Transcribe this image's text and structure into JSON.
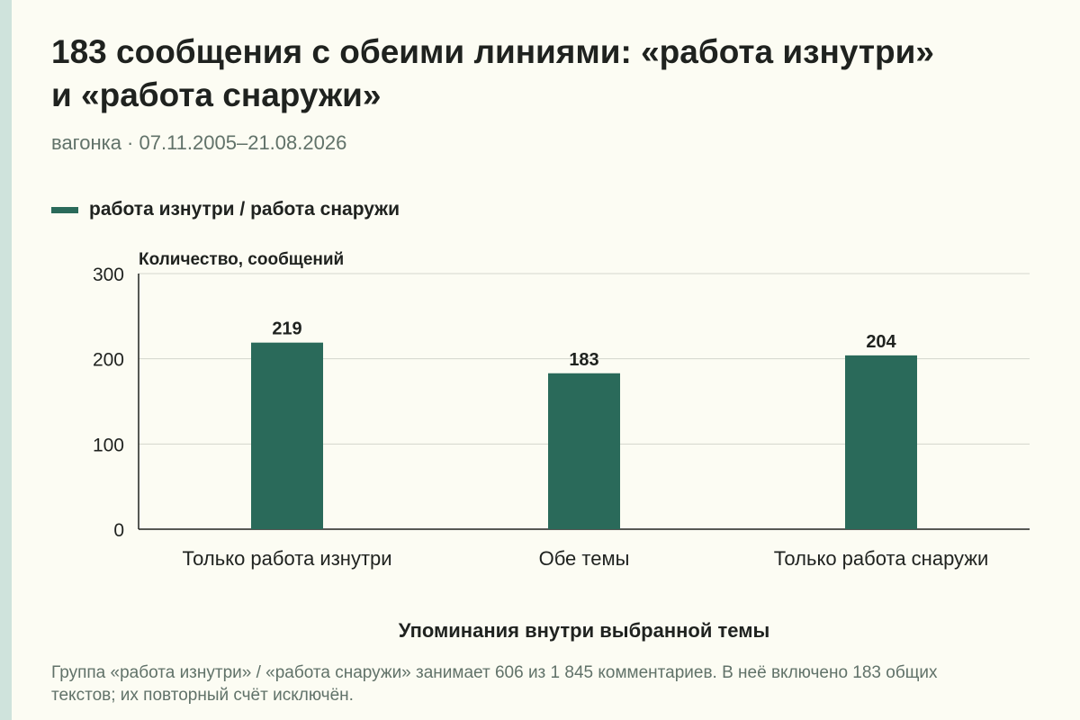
{
  "title": "183 сообщения с обеими линиями: «работа изнутри» и «работа снаружи»",
  "subtitle": "вагонка · 07.11.2005–21.08.2026",
  "legend": {
    "label": "работа изнутри / работа снаружи"
  },
  "footnote": "Группа «работа изнутри» / «работа снаружи» занимает 606 из 1 845 комментариев. В неё включено 183 общих текстов; их повторный счёт исключён.",
  "colors": {
    "bar": "#2a6a5a",
    "background": "#fcfcf3",
    "accent_strip": "#cfe3dc"
  },
  "chart_data": {
    "type": "bar",
    "categories": [
      "Только работа изнутри",
      "Обе темы",
      "Только работа снаружи"
    ],
    "series": [
      {
        "name": "работа изнутри / работа снаружи",
        "values": [
          219,
          183,
          204
        ]
      }
    ],
    "ylabel": "Количество, сообщений",
    "xlabel": "Упоминания внутри выбранной темы",
    "ylim": [
      0,
      300
    ],
    "yticks": [
      0,
      100,
      200,
      300
    ],
    "grid": true,
    "legend_position": "top-left"
  }
}
